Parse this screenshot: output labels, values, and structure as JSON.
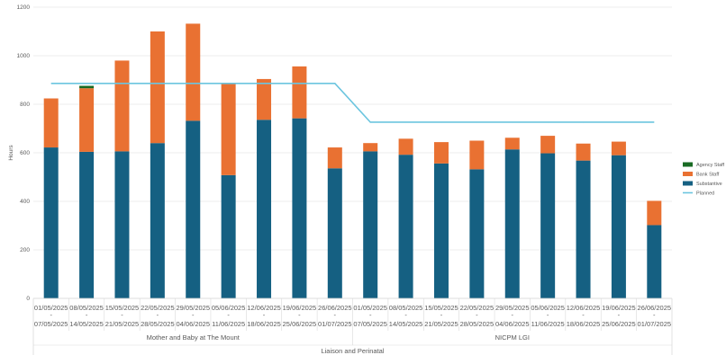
{
  "chart_data": {
    "type": "bar",
    "stacked": true,
    "title": "",
    "ylabel": "Hours",
    "xlabel": "",
    "ylim": [
      0,
      1200
    ],
    "yticks": [
      0,
      200,
      400,
      600,
      800,
      1000,
      1200
    ],
    "grid": true,
    "legend_position": "right",
    "top_group": "Liaison and Perinatal",
    "groups": [
      {
        "name": "Mother and Baby at The Mount",
        "count": 9
      },
      {
        "name": "NICPM LGI",
        "count": 9
      }
    ],
    "categories": [
      {
        "start": "01/05/2025",
        "sep": "-",
        "end": "07/05/2025"
      },
      {
        "start": "08/05/2025",
        "sep": "-",
        "end": "14/05/2025"
      },
      {
        "start": "15/05/2025",
        "sep": "-",
        "end": "21/05/2025"
      },
      {
        "start": "22/05/2025",
        "sep": "-",
        "end": "28/05/2025"
      },
      {
        "start": "29/05/2025",
        "sep": "-",
        "end": "04/06/2025"
      },
      {
        "start": "05/06/2025",
        "sep": "-",
        "end": "11/06/2025"
      },
      {
        "start": "12/06/2025",
        "sep": "-",
        "end": "18/06/2025"
      },
      {
        "start": "19/06/2025",
        "sep": "-",
        "end": "25/06/2025"
      },
      {
        "start": "26/06/2025",
        "sep": "-",
        "end": "01/07/2025"
      },
      {
        "start": "01/05/2025",
        "sep": "-",
        "end": "07/05/2025"
      },
      {
        "start": "08/05/2025",
        "sep": "-",
        "end": "14/05/2025"
      },
      {
        "start": "15/05/2025",
        "sep": "-",
        "end": "21/05/2025"
      },
      {
        "start": "22/05/2025",
        "sep": "-",
        "end": "28/05/2025"
      },
      {
        "start": "29/05/2025",
        "sep": "-",
        "end": "04/06/2025"
      },
      {
        "start": "05/06/2025",
        "sep": "-",
        "end": "11/06/2025"
      },
      {
        "start": "12/06/2025",
        "sep": "-",
        "end": "18/06/2025"
      },
      {
        "start": "19/06/2025",
        "sep": "-",
        "end": "25/06/2025"
      },
      {
        "start": "26/06/2025",
        "sep": "-",
        "end": "01/07/2025"
      }
    ],
    "series": [
      {
        "name": "Substantive",
        "kind": "bar",
        "color": "#156082",
        "values": [
          622,
          604,
          606,
          640,
          732,
          508,
          736,
          742,
          536,
          606,
          592,
          556,
          532,
          614,
          598,
          568,
          590,
          302
        ]
      },
      {
        "name": "Bank Staff",
        "kind": "bar",
        "color": "#E97132",
        "values": [
          202,
          262,
          374,
          460,
          400,
          376,
          168,
          214,
          86,
          34,
          66,
          88,
          118,
          48,
          72,
          70,
          56,
          100
        ]
      },
      {
        "name": "Agency Staff",
        "kind": "bar",
        "color": "#196B24",
        "values": [
          0,
          10,
          0,
          0,
          0,
          0,
          0,
          0,
          0,
          0,
          0,
          0,
          0,
          0,
          0,
          0,
          0,
          0
        ]
      },
      {
        "name": "Planned",
        "kind": "line",
        "color": "#6BC5DF",
        "values": [
          886,
          886,
          886,
          886,
          886,
          886,
          886,
          886,
          886,
          726,
          726,
          726,
          726,
          726,
          726,
          726,
          726,
          726
        ]
      }
    ],
    "legend_order": [
      "Agency Staff",
      "Bank Staff",
      "Substantive",
      "Planned"
    ]
  }
}
